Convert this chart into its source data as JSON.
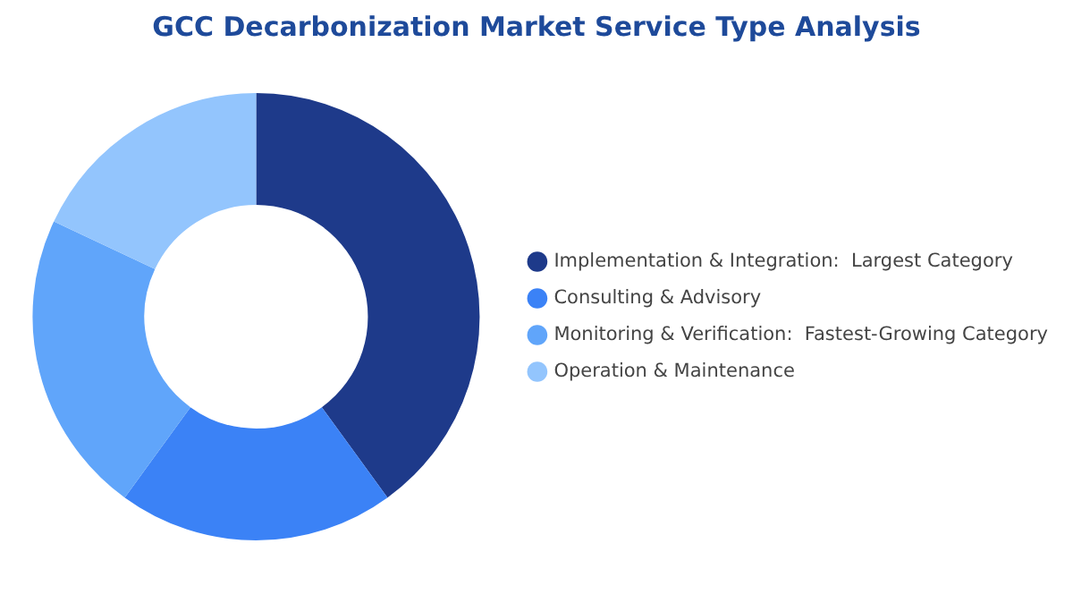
{
  "chart_data": {
    "type": "donut",
    "title": "GCC Decarbonization Market Service Type Analysis",
    "categories": [
      "Implementation & Integration:  Largest Category",
      "Consulting & Advisory",
      "Monitoring & Verification:  Fastest-Growing Category",
      "Operation & Maintenance"
    ],
    "values": [
      40,
      20,
      22,
      18
    ],
    "colors": [
      "#1e3a8a",
      "#3b82f6",
      "#60a5fa",
      "#93c5fd"
    ],
    "legend": "right"
  }
}
